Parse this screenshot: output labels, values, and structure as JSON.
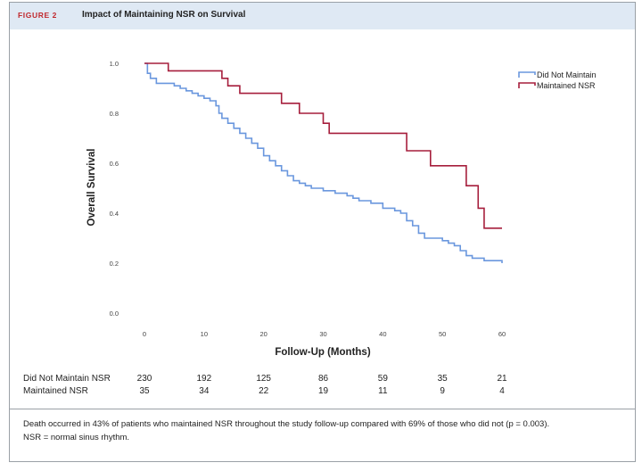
{
  "figure": {
    "label": "FIGURE 2",
    "title": "Impact of Maintaining NSR on Survival"
  },
  "colors": {
    "header_bg": "#dfe9f4",
    "label_red": "#c0282d",
    "did_not_maintain": "#6a97de",
    "maintained": "#a61e3c"
  },
  "chart_data": {
    "type": "line",
    "subtype": "kaplan-meier step",
    "xlabel": "Follow-Up (Months)",
    "ylabel": "Overall Survival",
    "xlim": [
      0,
      60
    ],
    "ylim": [
      0,
      1
    ],
    "xticks": [
      0,
      10,
      20,
      30,
      40,
      50,
      60
    ],
    "xtick_labels": [
      "0",
      "10",
      "20",
      "30",
      "40",
      "50",
      "60"
    ],
    "yticks": [
      0,
      0.2,
      0.4,
      0.6,
      0.8,
      1.0
    ],
    "ytick_labels": [
      "0.0",
      "0.2",
      "0.4",
      "0.6",
      "0.8",
      "1.0"
    ],
    "legend_position": "top-right",
    "series": [
      {
        "name": "Did Not Maintain",
        "color": "#6a97de",
        "x": [
          0,
          0.5,
          1,
          2,
          3,
          5,
          6,
          7,
          8,
          9,
          10,
          11,
          12,
          12.5,
          13,
          14,
          15,
          16,
          17,
          18,
          19,
          20,
          21,
          22,
          23,
          24,
          25,
          26,
          27,
          28,
          30,
          32,
          34,
          35,
          36,
          38,
          40,
          42,
          43,
          44,
          45,
          46,
          47,
          50,
          51,
          52,
          53,
          54,
          55,
          57,
          60
        ],
        "y": [
          1.0,
          0.96,
          0.94,
          0.92,
          0.92,
          0.91,
          0.9,
          0.89,
          0.88,
          0.87,
          0.86,
          0.85,
          0.83,
          0.8,
          0.78,
          0.76,
          0.74,
          0.72,
          0.7,
          0.68,
          0.66,
          0.63,
          0.61,
          0.59,
          0.57,
          0.55,
          0.53,
          0.52,
          0.51,
          0.5,
          0.49,
          0.48,
          0.47,
          0.46,
          0.45,
          0.44,
          0.42,
          0.41,
          0.4,
          0.37,
          0.35,
          0.32,
          0.3,
          0.29,
          0.28,
          0.27,
          0.25,
          0.23,
          0.22,
          0.21,
          0.2
        ]
      },
      {
        "name": "Maintained NSR",
        "color": "#a61e3c",
        "x": [
          0,
          4,
          13,
          14,
          16,
          23,
          26,
          30,
          31,
          44,
          48,
          54,
          56,
          57,
          60
        ],
        "y": [
          1.0,
          0.97,
          0.94,
          0.91,
          0.88,
          0.84,
          0.8,
          0.76,
          0.72,
          0.65,
          0.59,
          0.51,
          0.42,
          0.34,
          0.34
        ]
      }
    ]
  },
  "risk_table": {
    "times": [
      0,
      10,
      20,
      30,
      40,
      50,
      60
    ],
    "rows": [
      {
        "label": "Did Not Maintain NSR",
        "values": [
          "230",
          "192",
          "125",
          "86",
          "59",
          "35",
          "21"
        ]
      },
      {
        "label": "Maintained NSR",
        "values": [
          "35",
          "34",
          "22",
          "19",
          "11",
          "9",
          "4"
        ]
      }
    ]
  },
  "footnote": {
    "line1": "Death occurred in 43% of patients who maintained NSR throughout the study follow-up compared with 69% of those who did not (p = 0.003).",
    "line2": "NSR = normal sinus rhythm."
  }
}
